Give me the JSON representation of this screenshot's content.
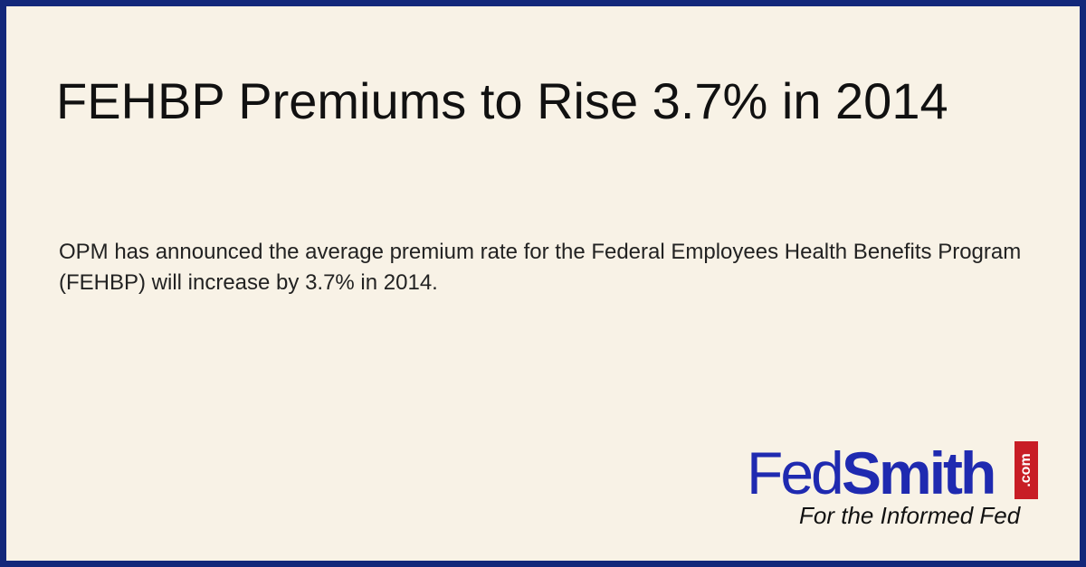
{
  "header": {
    "title": "FEHBP Premiums to Rise 3.7% in 2014"
  },
  "body": {
    "text": "OPM has announced the average premium rate for the Federal Employees Health Benefits Program (FEHBP) will increase by 3.7% in 2014."
  },
  "logo": {
    "fed": "Fed",
    "smith": "Smith",
    "com": ".com",
    "tagline": "For the Informed Fed"
  }
}
